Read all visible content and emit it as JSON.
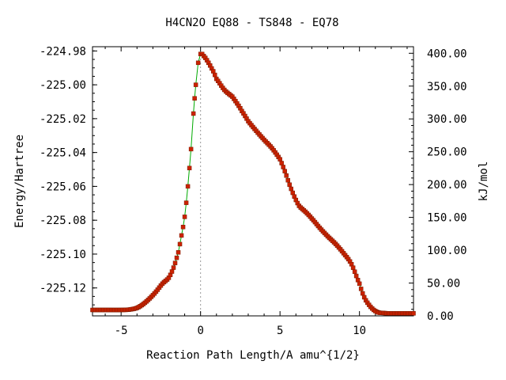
{
  "chart_data": {
    "type": "line",
    "title": "H4CN2O   EQ88 - TS848 - EQ78",
    "xlabel": "Reaction Path Length/A amu^{1/2}",
    "ylabel": "Energy/Hartree",
    "y2label": "kJ/mol",
    "xlim": [
      -6.8,
      13.4
    ],
    "ylim": [
      -225.1365,
      -224.9775
    ],
    "y2lim": [
      0,
      410
    ],
    "x_ticks": [
      {
        "value": -5,
        "label": "-5"
      },
      {
        "value": 0,
        "label": "0"
      },
      {
        "value": 5,
        "label": "5"
      },
      {
        "value": 10,
        "label": "10"
      }
    ],
    "y_ticks": [
      {
        "value": -224.98,
        "label": "-224.98"
      },
      {
        "value": -225.0,
        "label": "-225.00"
      },
      {
        "value": -225.02,
        "label": "-225.02"
      },
      {
        "value": -225.04,
        "label": "-225.04"
      },
      {
        "value": -225.06,
        "label": "-225.06"
      },
      {
        "value": -225.08,
        "label": "-225.08"
      },
      {
        "value": -225.1,
        "label": "-225.10"
      },
      {
        "value": -225.12,
        "label": "-225.12"
      }
    ],
    "y2_ticks": [
      {
        "value": 0,
        "label": "0.00"
      },
      {
        "value": 50,
        "label": "50.00"
      },
      {
        "value": 100,
        "label": "100.00"
      },
      {
        "value": 150,
        "label": "150.00"
      },
      {
        "value": 200,
        "label": "200.00"
      },
      {
        "value": 250,
        "label": "250.00"
      },
      {
        "value": 300,
        "label": "300.00"
      },
      {
        "value": 350,
        "label": "350.00"
      },
      {
        "value": 400,
        "label": "400.00"
      }
    ],
    "ts_marker_x": 0,
    "grid": false,
    "colors": {
      "line": "#00aa00",
      "marker": "#cc2200",
      "ts_line": "#999999"
    },
    "series": [
      {
        "x": [
          -6.8,
          -6.0,
          -5.0,
          -4.5,
          -4.0,
          -3.6,
          -3.2,
          -2.8,
          -2.4,
          -2.0,
          -1.7,
          -1.4,
          -1.2,
          -1.0,
          -0.8,
          -0.6,
          -0.45,
          -0.3,
          -0.15,
          0.0,
          0.2,
          0.5,
          0.8,
          1.0,
          1.5,
          2.0,
          2.3,
          2.6,
          3.0,
          3.5,
          4.0,
          4.5,
          5.0,
          5.3,
          5.6,
          5.9,
          6.2,
          6.6,
          7.0,
          7.5,
          8.0,
          8.5,
          9.0,
          9.5,
          10.0,
          10.3,
          10.6,
          10.9,
          11.2,
          11.5,
          11.8,
          12.2,
          12.6,
          13.0,
          13.4
        ],
        "y": [
          -225.133,
          -225.133,
          -225.133,
          -225.1328,
          -225.1318,
          -225.1295,
          -225.1262,
          -225.1222,
          -225.1175,
          -225.114,
          -225.108,
          -225.099,
          -225.089,
          -225.078,
          -225.06,
          -225.038,
          -225.017,
          -225.0,
          -224.987,
          -224.9818,
          -224.983,
          -224.987,
          -224.992,
          -224.9965,
          -225.003,
          -225.007,
          -225.011,
          -225.0155,
          -225.0215,
          -225.0272,
          -225.0325,
          -225.0375,
          -225.044,
          -225.051,
          -225.059,
          -225.066,
          -225.0715,
          -225.075,
          -225.079,
          -225.0845,
          -225.0895,
          -225.094,
          -225.0995,
          -225.106,
          -225.1175,
          -225.1255,
          -225.13,
          -225.133,
          -225.1345,
          -225.1348,
          -225.135,
          -225.135,
          -225.135,
          -225.135,
          -225.135
        ]
      }
    ]
  }
}
